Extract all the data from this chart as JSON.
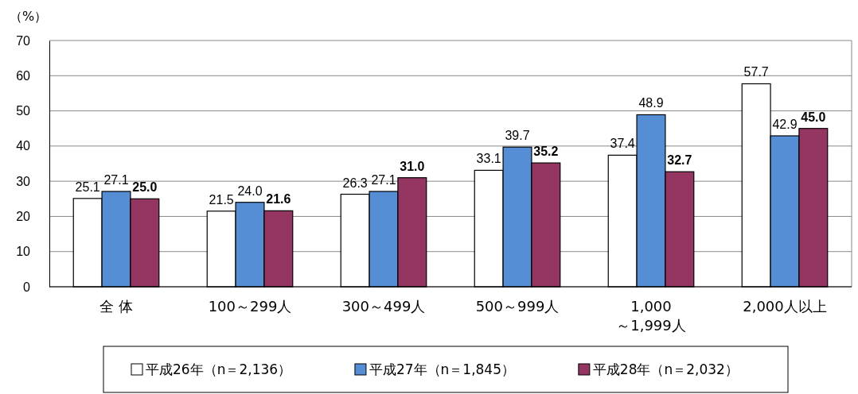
{
  "chart_data": {
    "type": "bar",
    "ylabel": "（%）",
    "categories": [
      "全 体",
      "100～299人",
      "300～499人",
      "500～999人",
      "1,000\n～1,999人",
      "2,000人以上"
    ],
    "series": [
      {
        "name": "平成26年（n＝2,136）",
        "color": "#ffffff",
        "values": [
          25.1,
          21.5,
          26.3,
          33.1,
          37.4,
          57.7
        ],
        "value_labels": [
          "25.1",
          "21.5",
          "26.3",
          "33.1",
          "37.4",
          "57.7"
        ]
      },
      {
        "name": "平成27年（n＝1,845）",
        "color": "#558ed5",
        "values": [
          27.1,
          24.0,
          27.1,
          39.7,
          48.9,
          42.9
        ],
        "value_labels": [
          "27.1",
          "24.0",
          "27.1",
          "39.7",
          "48.9",
          "42.9"
        ]
      },
      {
        "name": "平成28年（n＝2,032）",
        "color": "#953561",
        "values": [
          25.0,
          21.6,
          31.0,
          35.2,
          32.7,
          45.0
        ],
        "value_labels": [
          "25.0",
          "21.6",
          "31.0",
          "35.2",
          "32.7",
          "45.0"
        ]
      }
    ],
    "ylim": [
      0,
      70
    ],
    "yticks": [
      0,
      10,
      20,
      30,
      40,
      50,
      60,
      70
    ],
    "grid": "y",
    "legend": "bottom"
  }
}
